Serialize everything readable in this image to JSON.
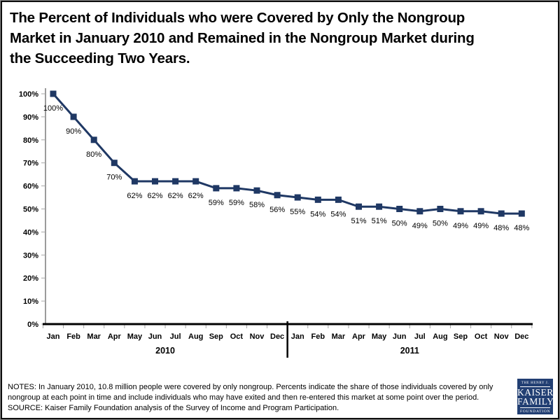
{
  "slide": {
    "title_lines": [
      "The Percent of Individuals who were Covered by Only the Nongroup",
      "Market in January 2010 and Remained in the Nongroup Market during",
      "the Succeeding Two Years."
    ]
  },
  "notes": {
    "text": "NOTES: In January 2010, 10.8 million people were covered by only nongroup.  Percents indicate the share of those individuals covered by only nongroup at each point in time and include individuals who may have exited and then re-entered this market at some point over the period.",
    "source": "SOURCE:  Kaiser Family Foundation analysis of the Survey of Income and Program Participation."
  },
  "logo": {
    "line1": "THE HENRY J.",
    "line2": "KAISER",
    "line3": "FAMILY",
    "line4": "FOUNDATION",
    "bg_color": "#223f73",
    "text_color": "#ffffff"
  },
  "chart_data": {
    "type": "line",
    "title": "The Percent of Individuals who were Covered by Only the Nongroup Market in January 2010 and Remained in the Nongroup Market during the Succeeding Two Years.",
    "x": [
      "Jan",
      "Feb",
      "Mar",
      "Apr",
      "May",
      "Jun",
      "Jul",
      "Aug",
      "Sep",
      "Oct",
      "Nov",
      "Dec",
      "Jan",
      "Feb",
      "Mar",
      "Apr",
      "May",
      "Jun",
      "Jul",
      "Aug",
      "Sep",
      "Oct",
      "Nov",
      "Dec"
    ],
    "years": [
      {
        "label": "2010",
        "start": 0,
        "end": 11
      },
      {
        "label": "2011",
        "start": 12,
        "end": 23
      }
    ],
    "values": [
      100,
      90,
      80,
      70,
      62,
      62,
      62,
      62,
      59,
      59,
      58,
      56,
      55,
      54,
      54,
      51,
      51,
      50,
      49,
      50,
      49,
      49,
      48,
      48
    ],
    "point_labels": [
      "100%",
      "90%",
      "80%",
      "70%",
      "62%",
      "62%",
      "62%",
      "62%",
      "59%",
      "59%",
      "58%",
      "56%",
      "55%",
      "54%",
      "54%",
      "51%",
      "51%",
      "50%",
      "49%",
      "50%",
      "49%",
      "49%",
      "48%",
      "48%"
    ],
    "y_ticks": [
      "0%",
      "10%",
      "20%",
      "30%",
      "40%",
      "50%",
      "60%",
      "70%",
      "80%",
      "90%",
      "100%"
    ],
    "ylim": [
      0,
      100
    ],
    "xlabel": "",
    "ylabel": "",
    "grid": false,
    "legend": "none",
    "marker": "square",
    "line_color": "#1f3864",
    "axis_color": "#000000",
    "tick_color": "#a6a6a6",
    "y_axis_color": "#595959"
  }
}
